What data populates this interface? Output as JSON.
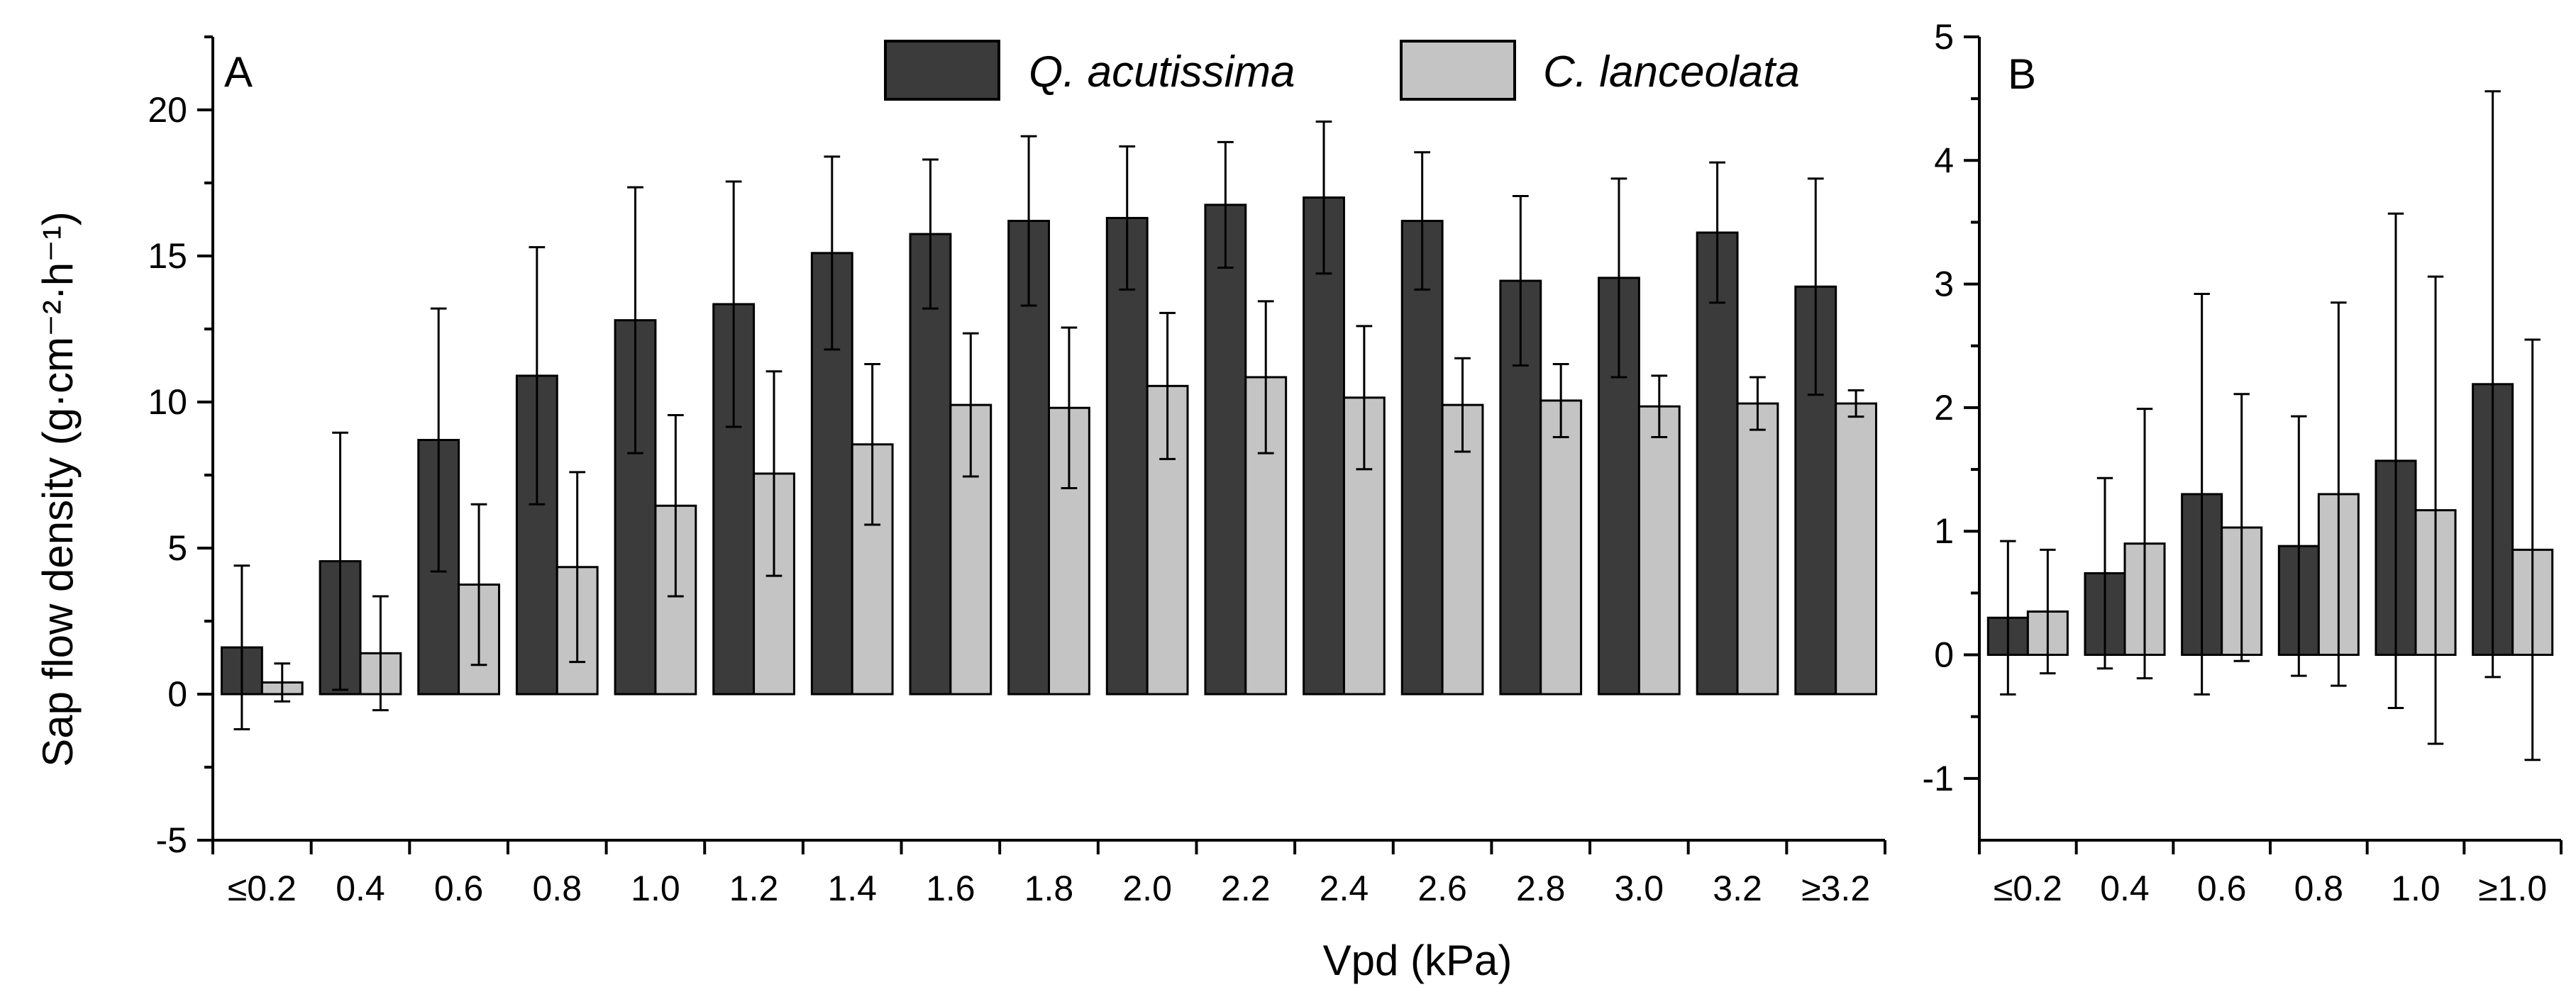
{
  "colors": {
    "q_acutissima": "#3b3b3b",
    "c_lanceolata": "#c4c4c4"
  },
  "xlabel": "Vpd (kPa)",
  "ylabel": "Sap flow density (g·cm⁻²·h⁻¹)",
  "chart_data": [
    {
      "type": "bar",
      "panel": "A",
      "categories": [
        "≤0.2",
        "0.4",
        "0.6",
        "0.8",
        "1.0",
        "1.2",
        "1.4",
        "1.6",
        "1.8",
        "2.0",
        "2.2",
        "2.4",
        "2.6",
        "2.8",
        "3.0",
        "3.2",
        "≥3.2"
      ],
      "ylim": [
        -5,
        22.5
      ],
      "yticks": [
        -5,
        0,
        5,
        10,
        15,
        20
      ],
      "legend": "top-right",
      "series": [
        {
          "name": "Q. acutissima",
          "values": [
            1.6,
            4.55,
            8.7,
            10.9,
            12.8,
            13.35,
            15.1,
            15.75,
            16.2,
            16.3,
            16.75,
            17.0,
            16.2,
            14.15,
            14.25,
            15.8,
            13.95
          ],
          "errors": [
            2.8,
            4.4,
            4.5,
            4.4,
            4.55,
            4.2,
            3.3,
            2.55,
            2.9,
            2.45,
            2.15,
            2.6,
            2.35,
            2.9,
            3.4,
            2.4,
            3.7
          ]
        },
        {
          "name": "C. lanceolata",
          "values": [
            0.4,
            1.4,
            3.75,
            4.35,
            6.45,
            7.55,
            8.55,
            9.9,
            9.8,
            10.55,
            10.85,
            10.15,
            9.9,
            10.05,
            9.85,
            9.95,
            9.95
          ],
          "errors": [
            0.65,
            1.95,
            2.75,
            3.25,
            3.1,
            3.5,
            2.75,
            2.45,
            2.75,
            2.5,
            2.6,
            2.45,
            1.6,
            1.25,
            1.05,
            0.9,
            0.45
          ]
        }
      ]
    },
    {
      "type": "bar",
      "panel": "B",
      "categories": [
        "≤0.2",
        "0.4",
        "0.6",
        "0.8",
        "1.0",
        "≥1.0"
      ],
      "ylim": [
        -1.5,
        5
      ],
      "yticks": [
        -1,
        0,
        1,
        2,
        3,
        4,
        5
      ],
      "series": [
        {
          "name": "Q. acutissima",
          "values": [
            0.3,
            0.66,
            1.3,
            0.88,
            1.57,
            2.19
          ],
          "errors": [
            0.62,
            0.77,
            1.62,
            1.05,
            2.0,
            2.37
          ]
        },
        {
          "name": "C. lanceolata",
          "values": [
            0.35,
            0.9,
            1.03,
            1.3,
            1.17,
            0.85
          ],
          "errors": [
            0.5,
            1.09,
            1.08,
            1.55,
            1.89,
            1.7
          ]
        }
      ]
    }
  ]
}
